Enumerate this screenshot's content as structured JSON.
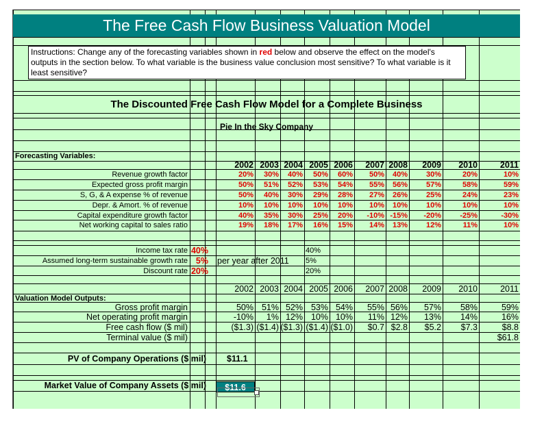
{
  "title": "The Free Cash Flow Business Valuation Model",
  "instructions": {
    "part1": "Instructions:  Change any of the forecasting variables shown in ",
    "red_word": "red",
    "part2": " below and observe the effect on the model's outputs in the section below.  To what variable is the business value conclusion most sensitive?  To what variable is it least sensitive?"
  },
  "model_heading": "The Discounted Free Cash Flow Model for a Complete Business",
  "company": "Pie In the Sky Company",
  "forecasting": {
    "section_label": "Forecasting Variables:",
    "years": [
      "2002",
      "2003",
      "2004",
      "2005",
      "2006",
      "2007",
      "2008",
      "2009",
      "2010",
      "2011"
    ],
    "rows": [
      {
        "label": "Revenue growth factor",
        "values": [
          "20%",
          "30%",
          "40%",
          "50%",
          "60%",
          "50%",
          "40%",
          "30%",
          "20%",
          "10%"
        ]
      },
      {
        "label": "Expected gross profit margin",
        "values": [
          "50%",
          "51%",
          "52%",
          "53%",
          "54%",
          "55%",
          "56%",
          "57%",
          "58%",
          "59%"
        ]
      },
      {
        "label": "S, G, & A expense % of revenue",
        "values": [
          "50%",
          "40%",
          "30%",
          "29%",
          "28%",
          "27%",
          "26%",
          "25%",
          "24%",
          "23%"
        ]
      },
      {
        "label": "Depr. & Amort. % of revenue",
        "values": [
          "10%",
          "10%",
          "10%",
          "10%",
          "10%",
          "10%",
          "10%",
          "10%",
          "10%",
          "10%"
        ]
      },
      {
        "label": "Capital expenditure growth factor",
        "values": [
          "40%",
          "35%",
          "30%",
          "25%",
          "20%",
          "-10%",
          "-15%",
          "-20%",
          "-25%",
          "-30%"
        ]
      },
      {
        "label": "Net working capital to sales ratio",
        "values": [
          "19%",
          "18%",
          "17%",
          "16%",
          "15%",
          "14%",
          "13%",
          "12%",
          "11%",
          "10%"
        ]
      }
    ]
  },
  "rates": [
    {
      "label": "Income tax rate",
      "value": "40%",
      "note": "",
      "mirror": "40%"
    },
    {
      "label": "Assumed long-term sustainable growth rate",
      "value": "5%",
      "note": "per year after 2011",
      "mirror": "5%"
    },
    {
      "label": "Discount rate",
      "value": "20%",
      "note": "",
      "mirror": "20%"
    }
  ],
  "outputs": {
    "section_label": "Valuation Model Outputs:",
    "years": [
      "2002",
      "2003",
      "2004",
      "2005",
      "2006",
      "2007",
      "2008",
      "2009",
      "2010",
      "2011"
    ],
    "rows": [
      {
        "label": "Gross profit margin",
        "values": [
          "50%",
          "51%",
          "52%",
          "53%",
          "54%",
          "55%",
          "56%",
          "57%",
          "58%",
          "59%"
        ]
      },
      {
        "label": "Net operating profit margin",
        "values": [
          "-10%",
          "1%",
          "12%",
          "10%",
          "10%",
          "11%",
          "12%",
          "13%",
          "14%",
          "16%"
        ]
      },
      {
        "label": "Free cash flow ($ mil)",
        "values": [
          "($1.3)",
          "($1.4)",
          "($1.3)",
          "($1.4)",
          "($1.0)",
          "$0.7",
          "$2.8",
          "$5.2",
          "$7.3",
          "$8.8"
        ]
      },
      {
        "label": "Terminal value ($ mil)",
        "values": [
          "",
          "",
          "",
          "",
          "",
          "",
          "",
          "",
          "",
          "$61.8"
        ]
      }
    ]
  },
  "pv": {
    "label": "PV of Company Operations ($ mil)",
    "value": "$11.1"
  },
  "market_value": {
    "label": "Market Value of Company Assets ($ mil)",
    "value": "$11.6"
  },
  "colors": {
    "sheet_bg": "#ccffcc",
    "title_band": "#008080",
    "input_red": "#e00000"
  }
}
